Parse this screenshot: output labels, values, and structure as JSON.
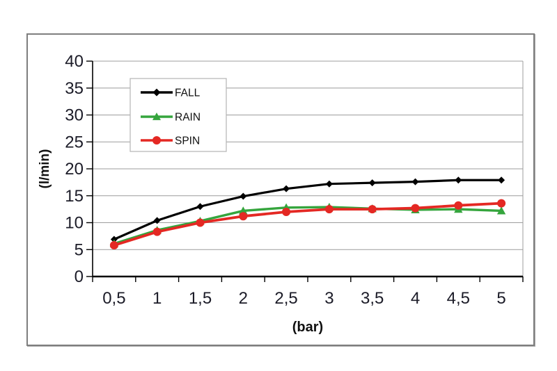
{
  "chart_data": {
    "type": "line",
    "title": "",
    "xlabel": "(bar)",
    "ylabel": "(l/min)",
    "x": [
      0.5,
      1,
      1.5,
      2,
      2.5,
      3,
      3.5,
      4,
      4.5,
      5
    ],
    "x_tick_labels": [
      "0,5",
      "1",
      "1,5",
      "2",
      "2,5",
      "3",
      "3,5",
      "4",
      "4,5",
      "5"
    ],
    "y_ticks": [
      0,
      5,
      10,
      15,
      20,
      25,
      30,
      35,
      40
    ],
    "y_tick_labels": [
      "0",
      "5",
      "10",
      "15",
      "20",
      "25",
      "30",
      "35",
      "40"
    ],
    "ylim": [
      0,
      40
    ],
    "grid": true,
    "legend_position": "upper-left-inside",
    "series": [
      {
        "name": "FALL",
        "color": "#000000",
        "marker": "diamond",
        "values": [
          6.9,
          10.4,
          13.0,
          14.9,
          16.3,
          17.2,
          17.4,
          17.6,
          17.9,
          17.9
        ]
      },
      {
        "name": "RAIN",
        "color": "#35a53d",
        "marker": "triangle",
        "values": [
          6.1,
          8.6,
          10.3,
          12.2,
          12.8,
          12.9,
          12.6,
          12.4,
          12.5,
          12.2
        ]
      },
      {
        "name": "SPIN",
        "color": "#e42823",
        "marker": "circle",
        "values": [
          5.8,
          8.3,
          10.0,
          11.2,
          12.0,
          12.5,
          12.5,
          12.7,
          13.2,
          13.6
        ]
      }
    ],
    "style": {
      "gridline_color": "#9c9c9c",
      "axis_color": "#000000",
      "tick_label_color": "#1c1c28",
      "axis_title_color": "#111111",
      "legend_border_color": "#b3b3b3",
      "legend_text_color": "#111111",
      "plot_background": "#ffffff"
    }
  }
}
